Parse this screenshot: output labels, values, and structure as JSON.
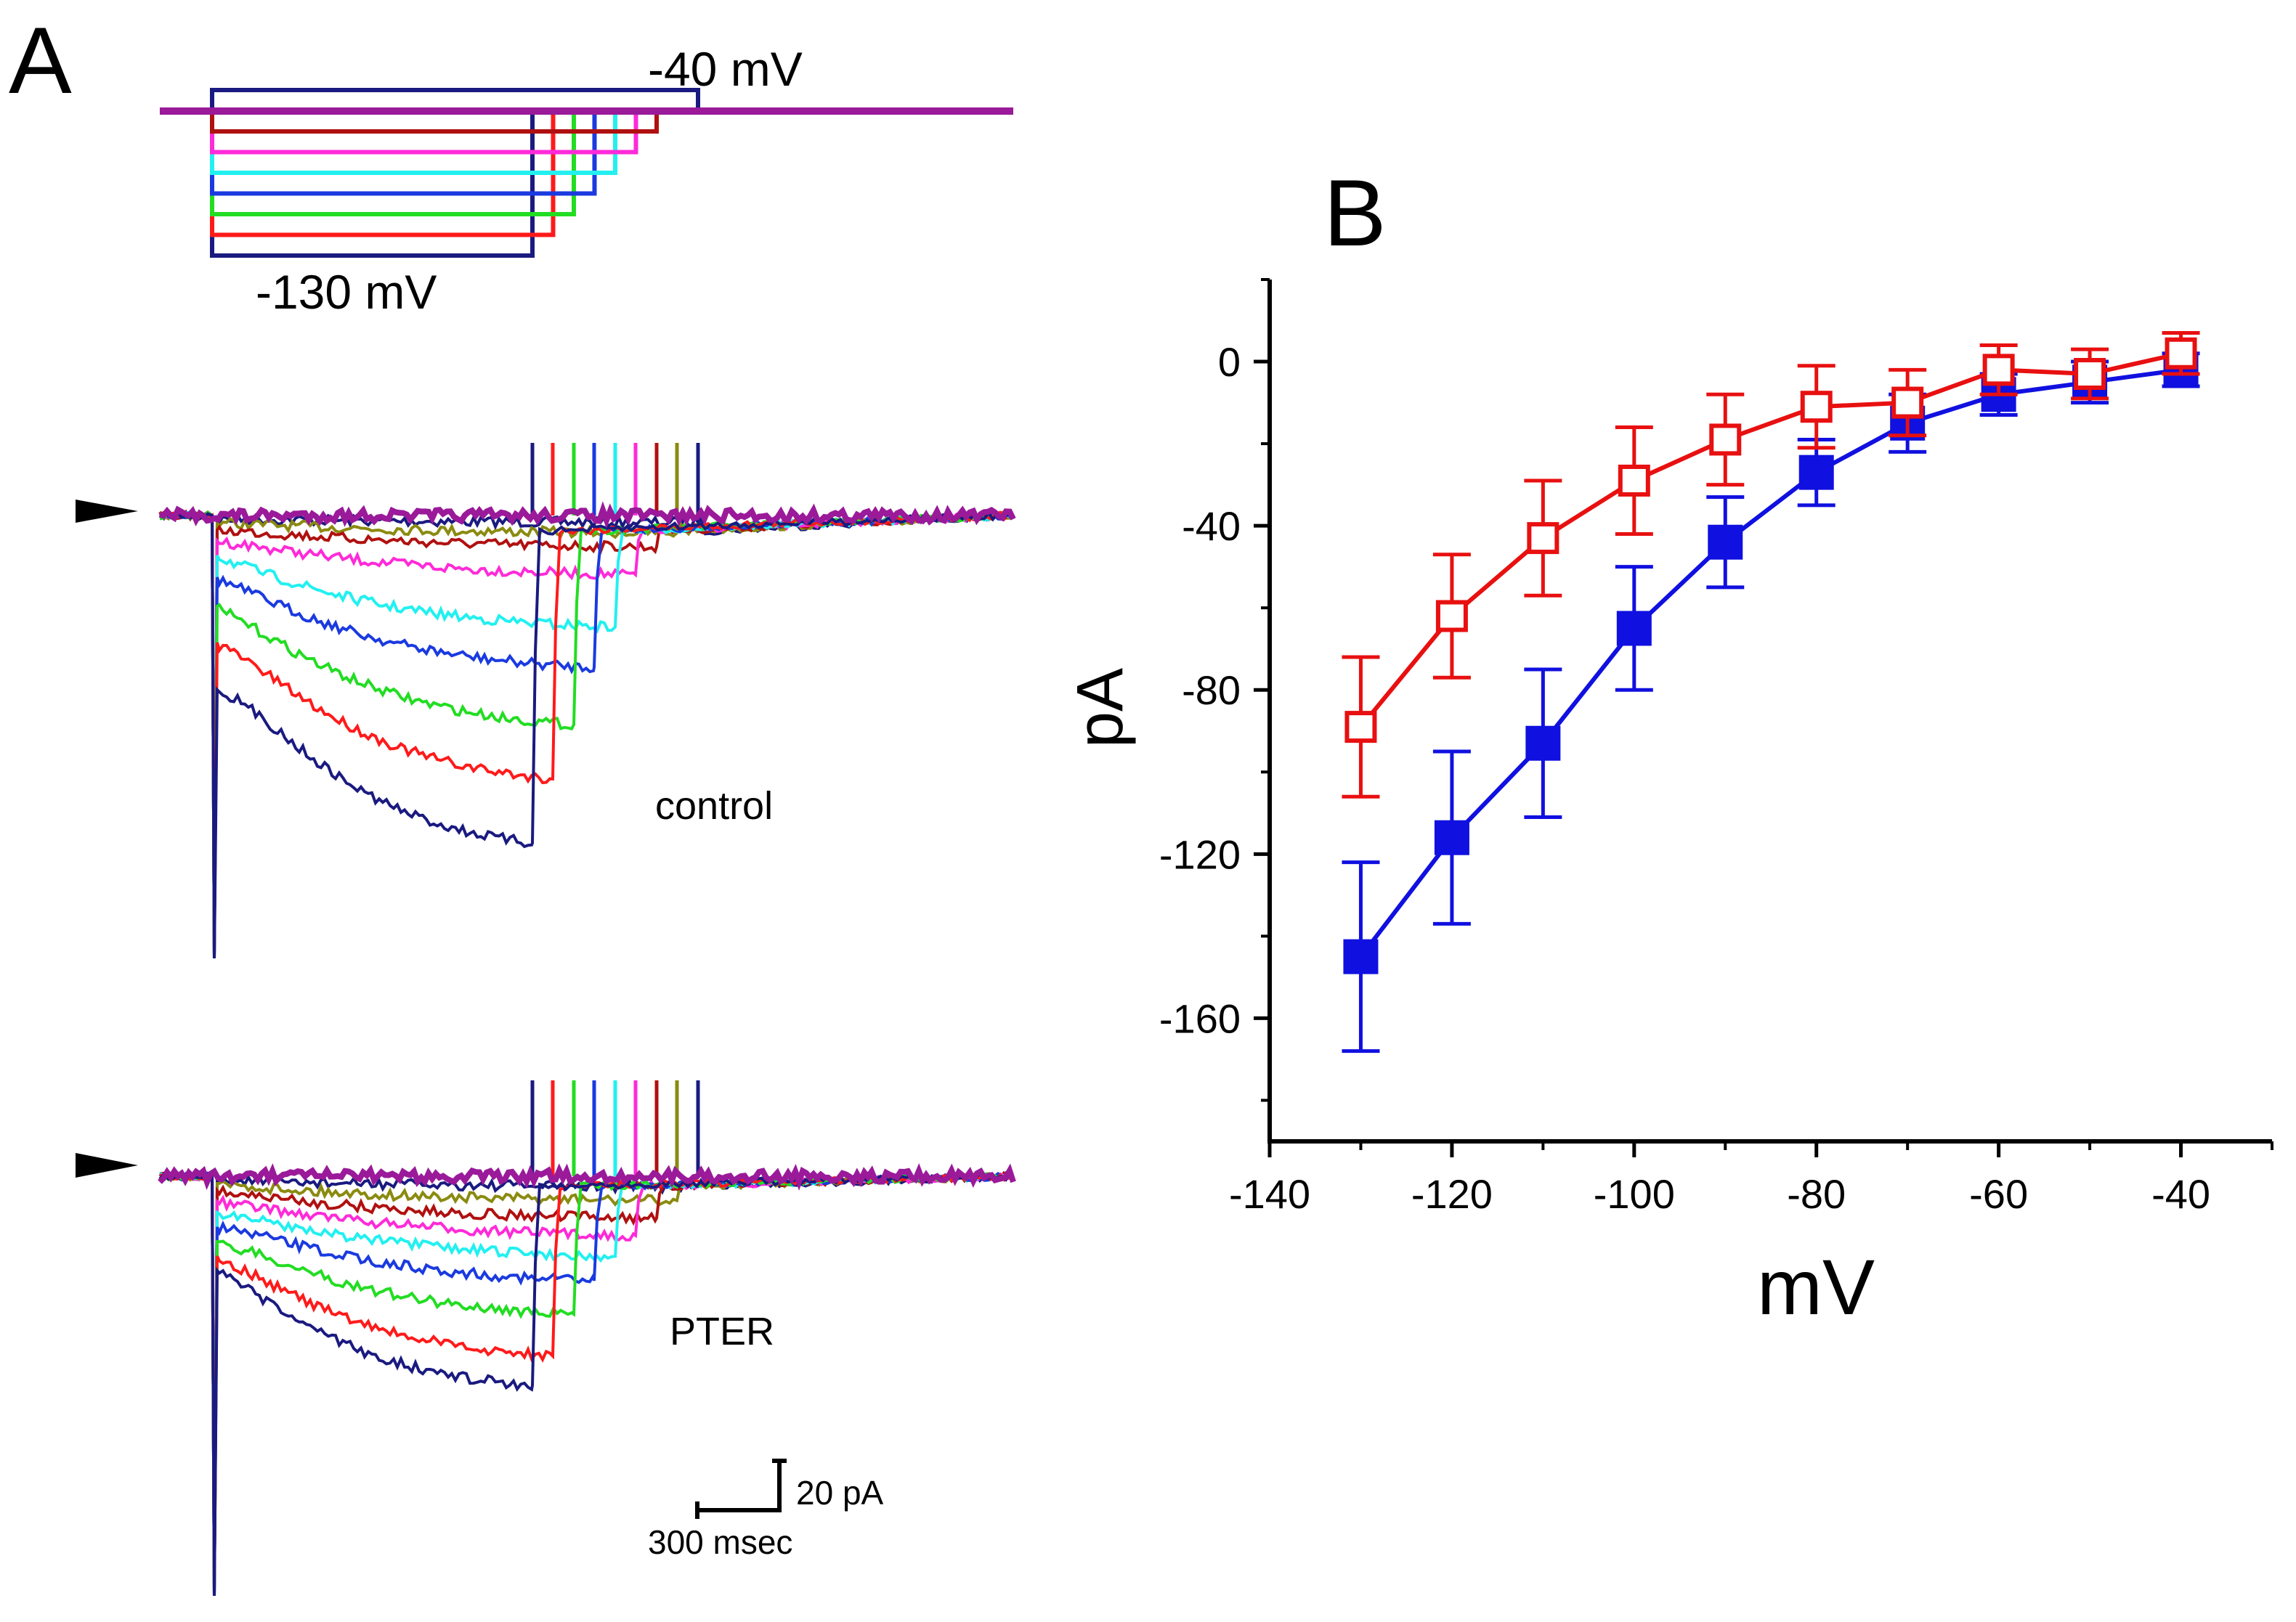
{
  "panel_a": {
    "label": "A",
    "protocol": {
      "holding_label": "-40 mV",
      "min_step_label": "-130 mV",
      "step_colors": [
        "#1a1a80",
        "#ff1a1a",
        "#22dd22",
        "#1a3ae0",
        "#22f0f0",
        "#ff2ad8",
        "#b01010",
        "#8a8a10",
        "#1a1a80",
        "#9a1a9a"
      ]
    },
    "control_label": "control",
    "pter_label": "PTER",
    "scale_bar": {
      "current_label": "20 pA",
      "time_label": "300 msec"
    }
  },
  "panel_b": {
    "label": "B"
  },
  "chart_data": {
    "type": "line",
    "title": "",
    "xlabel": "mV",
    "ylabel": "pA",
    "xlim": [
      -140,
      -30
    ],
    "ylim": [
      -190,
      20
    ],
    "xticks": [
      -140,
      -120,
      -100,
      -80,
      -60,
      -40
    ],
    "yticks": [
      0,
      -40,
      -80,
      -120,
      -160
    ],
    "x": [
      -130,
      -120,
      -110,
      -100,
      -90,
      -80,
      -70,
      -60,
      -50,
      -40
    ],
    "series": [
      {
        "name": "control",
        "color": "#1010e0",
        "marker": "filled-square",
        "values": [
          -145,
          -116,
          -93,
          -65,
          -44,
          -27,
          -15,
          -8,
          -5,
          -2
        ],
        "errors": [
          23,
          21,
          18,
          15,
          11,
          8,
          7,
          5,
          5,
          4
        ]
      },
      {
        "name": "PTER",
        "color": "#e81010",
        "marker": "open-square",
        "values": [
          -89,
          -62,
          -43,
          -29,
          -19,
          -11,
          -10,
          -2,
          -3,
          2
        ],
        "errors": [
          17,
          15,
          14,
          13,
          11,
          10,
          8,
          6,
          6,
          5
        ]
      }
    ]
  }
}
